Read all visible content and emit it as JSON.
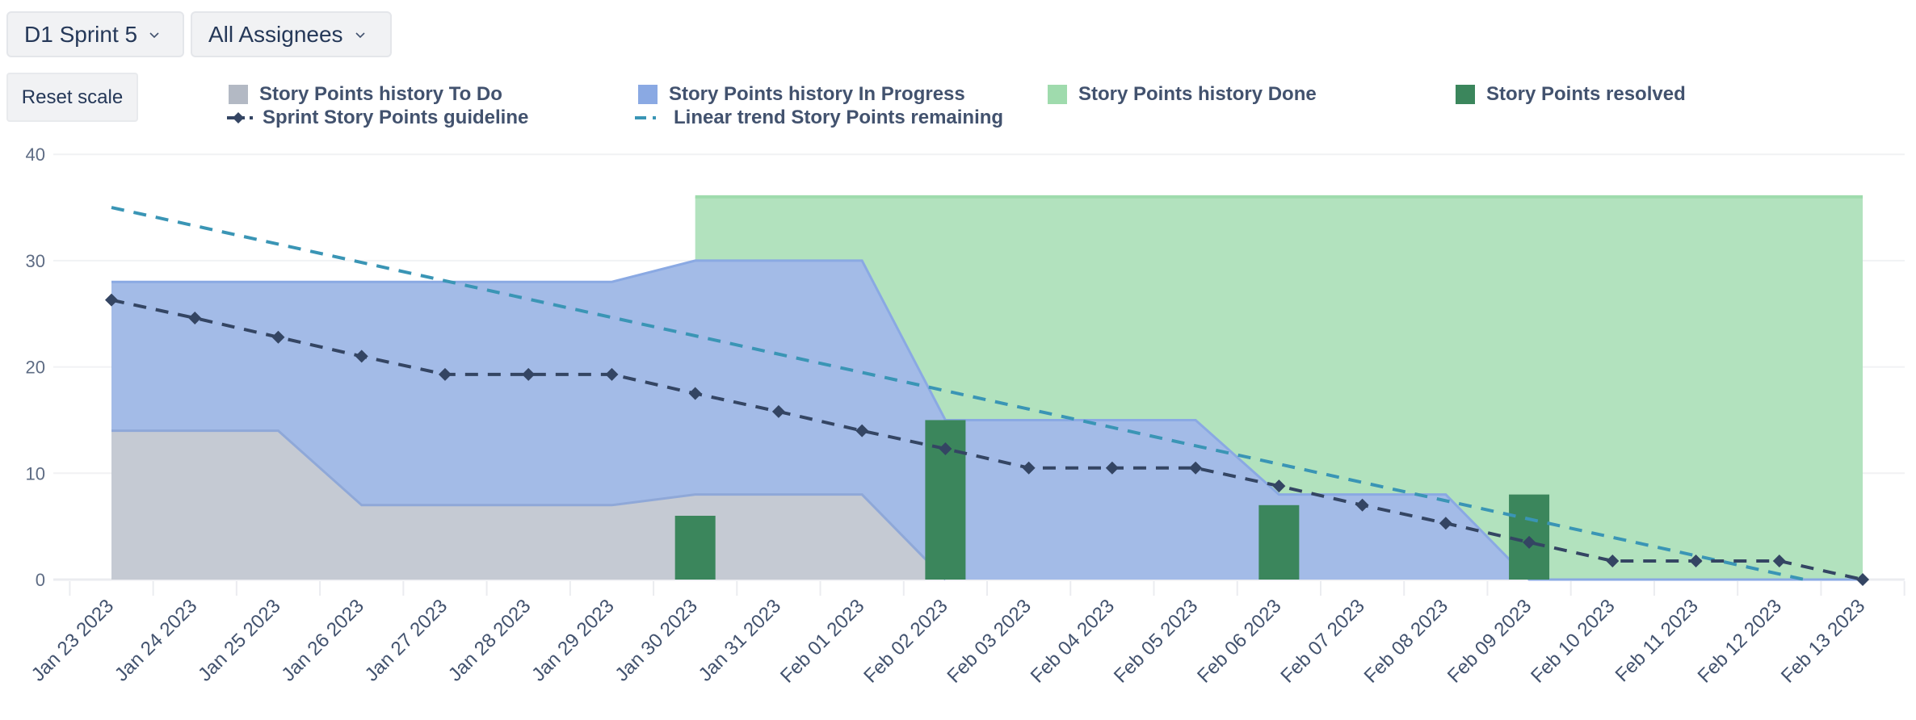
{
  "controls": {
    "sprint_select": {
      "label": "D1 Sprint 5",
      "icon": "chevron-down-icon"
    },
    "assignee_select": {
      "label": "All Assignees",
      "icon": "chevron-down-icon"
    },
    "reset_scale_label": "Reset scale"
  },
  "legend": [
    {
      "label": "Story Points history To Do",
      "type": "area",
      "color": "#b3b9c4"
    },
    {
      "label": "Story Points history In Progress",
      "type": "area",
      "color": "#8aa9e3"
    },
    {
      "label": "Story Points history Done",
      "type": "area",
      "color": "#9fdbad"
    },
    {
      "label": "Story Points resolved",
      "type": "bar",
      "color": "#3b865c"
    },
    {
      "label": "Sprint Story Points guideline",
      "type": "line-diamond",
      "color": "#344563"
    },
    {
      "label": "Linear trend Story Points remaining",
      "type": "dashed-line",
      "color": "#3a95b5"
    }
  ],
  "chart_data": {
    "type": "area",
    "title": "",
    "xlabel": "",
    "ylabel": "",
    "ylim": [
      0,
      40
    ],
    "yticks": [
      0,
      10,
      20,
      30,
      40
    ],
    "grid": true,
    "legend_position": "top",
    "categories": [
      "Jan 23 2023",
      "Jan 24 2023",
      "Jan 25 2023",
      "Jan 26 2023",
      "Jan 27 2023",
      "Jan 28 2023",
      "Jan 29 2023",
      "Jan 30 2023",
      "Jan 31 2023",
      "Feb 01 2023",
      "Feb 02 2023",
      "Feb 03 2023",
      "Feb 04 2023",
      "Feb 05 2023",
      "Feb 06 2023",
      "Feb 07 2023",
      "Feb 08 2023",
      "Feb 09 2023",
      "Feb 10 2023",
      "Feb 11 2023",
      "Feb 12 2023",
      "Feb 13 2023"
    ],
    "series": [
      {
        "name": "Story Points history To Do",
        "type": "stacked-area",
        "color": "#c5cad3",
        "stroke": "#aab3c0",
        "values": [
          14,
          14,
          14,
          7,
          7,
          7,
          7,
          8,
          8,
          8,
          0,
          0,
          0,
          0,
          0,
          0,
          0,
          0,
          0,
          0,
          0,
          0
        ]
      },
      {
        "name": "Story Points history In Progress",
        "type": "stacked-area",
        "color": "#a3bbe7",
        "stroke": "#8aa9e3",
        "values": [
          14,
          14,
          14,
          21,
          21,
          21,
          21,
          22,
          22,
          22,
          15,
          15,
          15,
          15,
          8,
          8,
          8,
          0,
          0,
          0,
          0,
          0
        ]
      },
      {
        "name": "Story Points history Done",
        "type": "stacked-area",
        "color": "#b2e2be",
        "stroke": "#9fdbad",
        "values": [
          null,
          null,
          null,
          null,
          null,
          null,
          null,
          6,
          6,
          6,
          21,
          21,
          21,
          21,
          28,
          28,
          28,
          36,
          36,
          36,
          36,
          36
        ]
      },
      {
        "name": "Story Points resolved",
        "type": "bar",
        "color": "#3b865c",
        "values": [
          0,
          0,
          0,
          0,
          0,
          0,
          0,
          6,
          0,
          0,
          15,
          0,
          0,
          0,
          7,
          0,
          0,
          8,
          0,
          0,
          0,
          0
        ]
      },
      {
        "name": "Sprint Story Points guideline",
        "type": "line",
        "color": "#344563",
        "marker": "diamond",
        "dash": true,
        "values": [
          26.3,
          24.6,
          22.8,
          21.0,
          19.3,
          19.3,
          19.3,
          17.5,
          15.8,
          14.0,
          12.3,
          10.5,
          10.5,
          10.5,
          8.8,
          7.0,
          5.3,
          3.5,
          1.75,
          1.75,
          1.75,
          0
        ]
      },
      {
        "name": "Linear trend Story Points remaining",
        "type": "line",
        "color": "#3a95b5",
        "dash": true,
        "start": {
          "x": 0,
          "y": 35
        },
        "end": {
          "x": 20.3,
          "y": 0
        }
      }
    ]
  }
}
